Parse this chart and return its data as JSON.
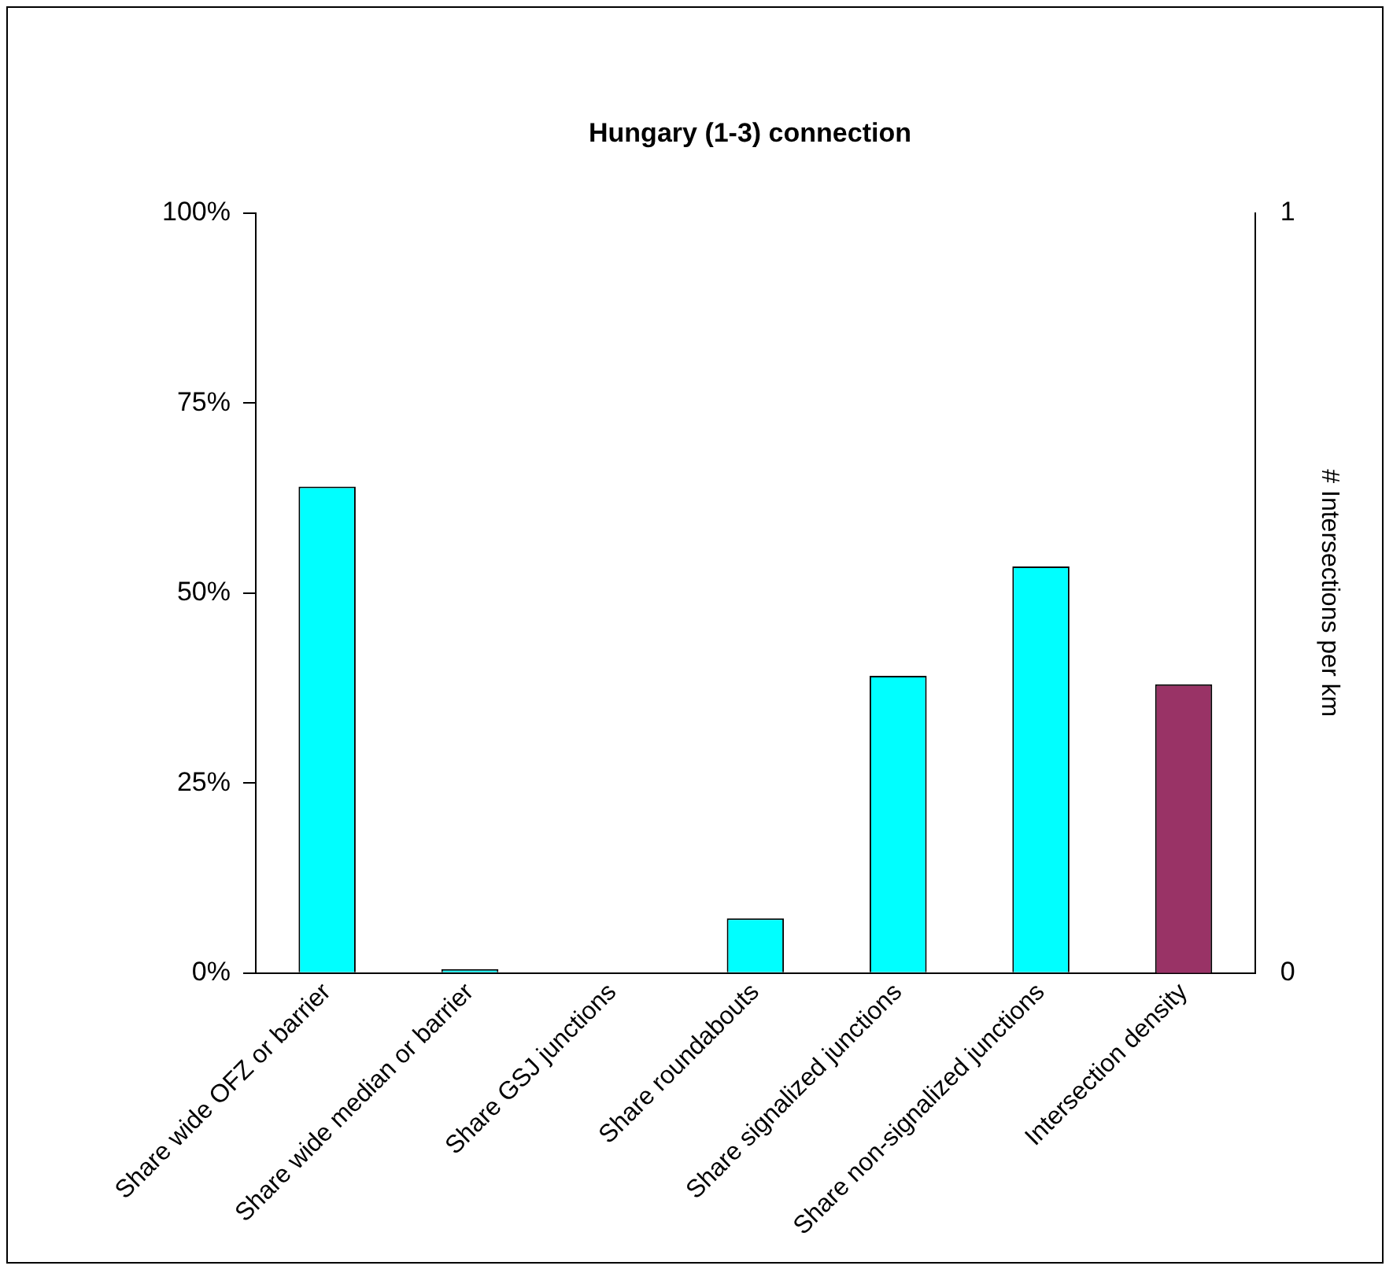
{
  "chart_data": {
    "type": "bar",
    "title": "Hungary (1-3) connection",
    "y2label": "# Intersections per km",
    "categories": [
      "Share wide OFZ or barrier",
      "Share wide median or barrier",
      "Share GSJ junctions",
      "Share roundabouts",
      "Share signalized junctions",
      "Share non-signalized junctions",
      "Intersection density"
    ],
    "series": [
      {
        "color": "#00ffff",
        "values": [
          0.64,
          0.005,
          0,
          0.072,
          0.391,
          0.535,
          null
        ]
      },
      {
        "color": "#993366",
        "axis": "y2",
        "values": [
          null,
          null,
          null,
          null,
          null,
          null,
          0.38
        ]
      }
    ],
    "ylim": [
      0,
      1
    ],
    "yticks": [
      {
        "value": 0,
        "label": "0%"
      },
      {
        "value": 0.25,
        "label": "25%"
      },
      {
        "value": 0.5,
        "label": "50%"
      },
      {
        "value": 0.75,
        "label": "75%"
      },
      {
        "value": 1,
        "label": "100%"
      }
    ],
    "y2lim": [
      0,
      1
    ],
    "y2ticks": [
      0,
      1
    ],
    "grid": false,
    "legend": false
  }
}
